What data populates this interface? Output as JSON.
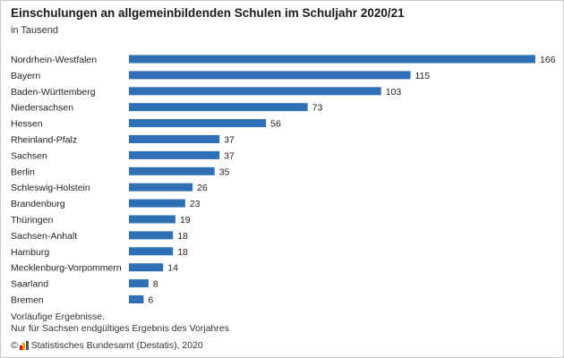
{
  "chart_data": {
    "type": "bar",
    "orientation": "horizontal",
    "title": "Einschulungen an allgemeinbildenden Schulen im Schuljahr 2020/21",
    "subtitle": "in Tausend",
    "categories": [
      "Nordrhein-Westfalen",
      "Bayern",
      "Baden-Württemberg",
      "Niedersachsen",
      "Hessen",
      "Rheinland-Pfalz",
      "Sachsen",
      "Berlin",
      "Schleswig-Holstein",
      "Brandenburg",
      "Thüringen",
      "Sachsen-Anhalt",
      "Hamburg",
      "Mecklenburg-Vorpommern",
      "Saarland",
      "Bremen"
    ],
    "values": [
      166,
      115,
      103,
      73,
      56,
      37,
      37,
      35,
      26,
      23,
      19,
      18,
      18,
      14,
      8,
      6
    ],
    "xlim": [
      0,
      166
    ],
    "grid": false,
    "bar_color": "#2e6fb5"
  },
  "footer": {
    "note_line1": "Vorläufige Ergebnisse.",
    "note_line2": "Nur für Sachsen endgültiges Ergebnis des Vorjahres",
    "copyright": "©",
    "source": "Statistisches Bundesamt (Destatis), 2020"
  }
}
